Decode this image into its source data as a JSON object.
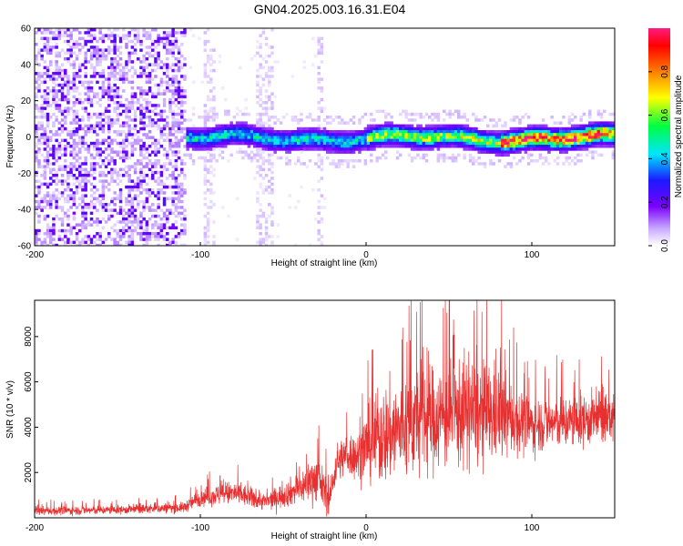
{
  "chart_data": [
    {
      "type": "heatmap",
      "title": "GN04.2025.003.16.31.E04",
      "xlabel": "Height of straight line (km)",
      "ylabel": "Frequency (Hz)",
      "xlim": [
        -200,
        150
      ],
      "ylim": [
        -60,
        60
      ],
      "xticks": [
        -200,
        -100,
        0,
        100
      ],
      "xtick_labels": [
        "-200",
        "-100",
        "0",
        "100"
      ],
      "yticks": [
        -60,
        -40,
        -20,
        0,
        20,
        40,
        60
      ],
      "ytick_labels": [
        "-60",
        "-40",
        "-20",
        "0",
        "20",
        "40",
        "60"
      ],
      "colorbar": {
        "label": "Normalized spectral amplitude",
        "range": [
          0,
          1
        ],
        "ticks": [
          0.0,
          0.2,
          0.4,
          0.6,
          0.8
        ],
        "tick_labels": [
          "0.0",
          "0.2",
          "0.4",
          "0.6",
          "0.8"
        ],
        "colormap": [
          "#ffffff",
          "#c8a8ff",
          "#7b00ff",
          "#1a1aff",
          "#00e5ff",
          "#00ff40",
          "#ffff00",
          "#ff7f00",
          "#ff0000",
          "#ff1a80"
        ]
      },
      "features": [
        {
          "description_region": "broadband noise",
          "x_range": [
            -200,
            -110
          ],
          "y_range": [
            -60,
            60
          ],
          "amplitude": 0.15
        },
        {
          "description_region": "sparse noise streaks",
          "x_range": [
            -110,
            -25
          ],
          "y_range": [
            -60,
            60
          ],
          "amplitude": 0.05
        },
        {
          "description_region": "signal band near 0 Hz",
          "x_range": [
            -110,
            150
          ],
          "y_range": [
            -8,
            8
          ],
          "amplitude": 0.7
        }
      ],
      "grid": false
    },
    {
      "type": "line",
      "xlabel": "Height of straight line (km)",
      "ylabel": "SNR (10 * v/v)",
      "xlim": [
        -200,
        150
      ],
      "ylim": [
        0,
        9600
      ],
      "xticks": [
        -200,
        -100,
        0,
        100
      ],
      "xtick_labels": [
        "-200",
        "-100",
        "0",
        "100"
      ],
      "yticks": [
        2000,
        4000,
        6000,
        8000
      ],
      "ytick_labels": [
        "2000",
        "4000",
        "6000",
        "8000"
      ],
      "color": "#e83030",
      "envelope": {
        "x": [
          -200,
          -150,
          -110,
          -100,
          -80,
          -60,
          -40,
          -30,
          -22,
          -18,
          -12,
          -5,
          0,
          10,
          20,
          30,
          40,
          50,
          60,
          70,
          80,
          90,
          100,
          110,
          120,
          130,
          140,
          150
        ],
        "mean": [
          300,
          350,
          450,
          900,
          1100,
          700,
          1300,
          1800,
          800,
          2400,
          2800,
          2700,
          3200,
          3600,
          3900,
          4300,
          4400,
          4500,
          4700,
          4500,
          4600,
          4300,
          4100,
          4200,
          4200,
          4300,
          4400,
          4400
        ],
        "amp": [
          250,
          250,
          300,
          500,
          700,
          500,
          900,
          1400,
          900,
          1100,
          1200,
          1400,
          2000,
          2800,
          3000,
          3200,
          3000,
          3000,
          3200,
          3000,
          2700,
          2000,
          1600,
          1500,
          1500,
          1500,
          1500,
          1400
        ]
      },
      "grid": false
    }
  ]
}
